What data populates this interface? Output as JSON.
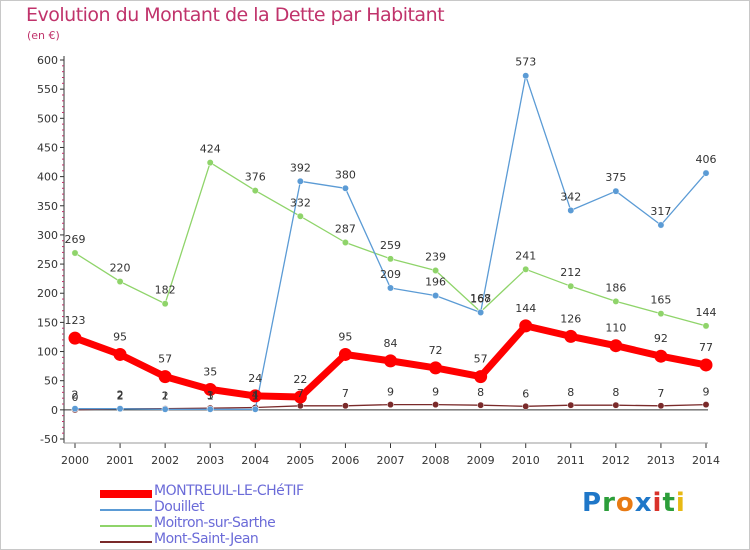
{
  "title": "Evolution du Montant de la Dette par Habitant",
  "subtitle": "(en €)",
  "logo": "Proxiti",
  "logo_colors": [
    "#1f77c8",
    "#2c9e3a",
    "#e87a13",
    "#1f77c8",
    "#d9322a",
    "#2c9e3a",
    "#e8b913"
  ],
  "chart_data": {
    "type": "line",
    "x": [
      2000,
      2001,
      2002,
      2003,
      2004,
      2005,
      2006,
      2007,
      2008,
      2009,
      2010,
      2011,
      2012,
      2013,
      2014
    ],
    "ylim": [
      -50,
      600
    ],
    "yticks": [
      -50,
      0,
      50,
      100,
      150,
      200,
      250,
      300,
      350,
      400,
      450,
      500,
      550,
      600
    ],
    "grid": false,
    "legend_position": "bottom-left",
    "series": [
      {
        "name": "Mont-Saint-Jean",
        "color": "#7a2a2a",
        "values": [
          0,
          2,
          2,
          3,
          4,
          7,
          7,
          9,
          9,
          8,
          6,
          8,
          8,
          7,
          9
        ]
      },
      {
        "name": "Moitron-sur-Sarthe",
        "color": "#8fd46a",
        "values": [
          269,
          220,
          182,
          424,
          376,
          332,
          287,
          259,
          239,
          168,
          241,
          212,
          186,
          165,
          144
        ]
      },
      {
        "name": "Douillet",
        "color": "#5b9bd5",
        "values": [
          2,
          2,
          1,
          1,
          1,
          392,
          380,
          209,
          196,
          167,
          573,
          342,
          375,
          317,
          406
        ]
      },
      {
        "name": "MONTREUIL-LE-CHéTIF",
        "color": "#ff0000",
        "values": [
          123,
          95,
          57,
          35,
          24,
          22,
          95,
          84,
          72,
          57,
          144,
          126,
          110,
          92,
          77
        ]
      }
    ]
  },
  "legend": [
    {
      "name": "MONTREUIL-LE-CHéTIF",
      "color": "#ff0000",
      "text_color": "#6b6bd8"
    },
    {
      "name": "Douillet",
      "color": "#5b9bd5",
      "text_color": "#6b6bd8"
    },
    {
      "name": "Moitron-sur-Sarthe",
      "color": "#8fd46a",
      "text_color": "#6b6bd8"
    },
    {
      "name": "Mont-Saint-Jean",
      "color": "#7a2a2a",
      "text_color": "#6b6bd8"
    }
  ]
}
